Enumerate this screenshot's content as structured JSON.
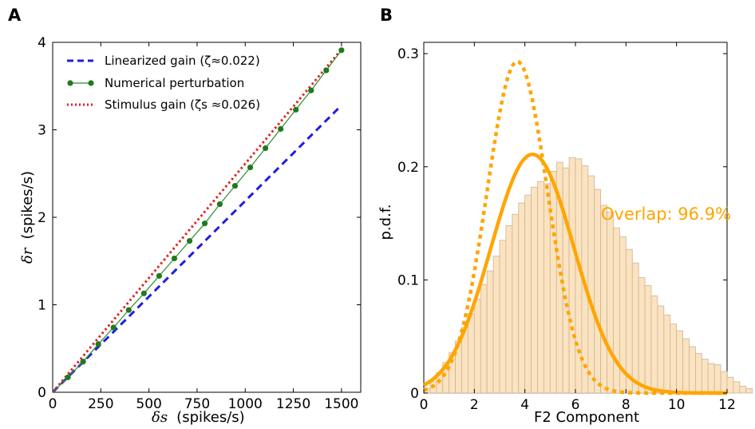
{
  "chart_data": [
    {
      "panel": "A",
      "type": "line",
      "xlabel_math": "δs",
      "xlabel_units": "(spikes/s)",
      "ylabel_math": "δr",
      "ylabel_units": "(spikes/s)",
      "xlim": [
        0,
        1600
      ],
      "ylim": [
        0,
        4
      ],
      "xticks": [
        "0",
        "250",
        "500",
        "750",
        "1000",
        "1250",
        "1500"
      ],
      "yticks": [
        "0",
        "1",
        "2",
        "3",
        "4"
      ],
      "grid": false,
      "legend_position": "top-left",
      "series": [
        {
          "name": "Linearized gain (ζ≈0.022)",
          "color": "#1f1fe0",
          "style": "dashed",
          "x": [
            0,
            1500
          ],
          "y": [
            0,
            3.28
          ]
        },
        {
          "name": "Numerical perturbation",
          "color": "#2e8b2e",
          "style": "solid-markers",
          "x": [
            0,
            79,
            158,
            237,
            316,
            395,
            474,
            553,
            632,
            711,
            790,
            868,
            947,
            1026,
            1105,
            1184,
            1263,
            1342,
            1421,
            1500
          ],
          "y": [
            0.0,
            0.17,
            0.35,
            0.55,
            0.74,
            0.94,
            1.13,
            1.33,
            1.53,
            1.73,
            1.93,
            2.15,
            2.36,
            2.57,
            2.79,
            3.01,
            3.23,
            3.45,
            3.68,
            3.91
          ]
        },
        {
          "name": "Stimulus gain (ζs ≈0.026)",
          "color": "#e01f1f",
          "style": "dotted",
          "x": [
            0,
            1500
          ],
          "y": [
            0,
            3.92
          ]
        }
      ]
    },
    {
      "panel": "B",
      "type": "histogram+line",
      "xlabel": "F2 Component",
      "ylabel": "p.d.f.",
      "xlim": [
        0,
        12
      ],
      "ylim": [
        0,
        0.31
      ],
      "xticks": [
        "0",
        "2",
        "4",
        "6",
        "8",
        "10",
        "12"
      ],
      "yticks": [
        "0",
        "0.1",
        "0.2",
        "0.3"
      ],
      "annotation": "Overlap: 96.9%",
      "accent_color": "#ffa500",
      "bar_fill": "#fce3bf",
      "bar_edge": "#c8b59c",
      "histogram": {
        "bin_width": 0.25,
        "bin_start": 0,
        "values": [
          0.004,
          0.01,
          0.018,
          0.027,
          0.036,
          0.046,
          0.058,
          0.07,
          0.083,
          0.096,
          0.108,
          0.121,
          0.135,
          0.148,
          0.158,
          0.168,
          0.175,
          0.182,
          0.187,
          0.185,
          0.196,
          0.204,
          0.199,
          0.208,
          0.207,
          0.201,
          0.192,
          0.18,
          0.166,
          0.16,
          0.146,
          0.138,
          0.127,
          0.115,
          0.102,
          0.095,
          0.086,
          0.077,
          0.069,
          0.061,
          0.055,
          0.048,
          0.041,
          0.035,
          0.03,
          0.026,
          0.025,
          0.019,
          0.014,
          0.01,
          0.006,
          0.004
        ]
      },
      "curves": [
        {
          "style": "solid",
          "mean": 4.3,
          "sd": 1.65,
          "peak": 0.211
        },
        {
          "style": "dotted",
          "mean": 3.7,
          "sd": 1.2,
          "peak": 0.293
        }
      ]
    }
  ]
}
